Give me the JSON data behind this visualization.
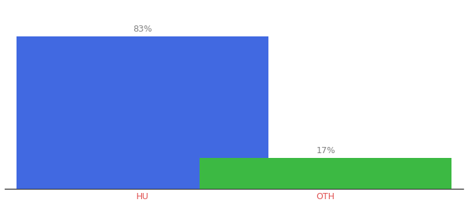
{
  "categories": [
    "HU",
    "OTH"
  ],
  "values": [
    83,
    17
  ],
  "bar_colors": [
    "#4169E1",
    "#3CB943"
  ],
  "label_texts": [
    "83%",
    "17%"
  ],
  "title": "",
  "label_fontsize": 9,
  "tick_fontsize": 9,
  "tick_color": "#E05050",
  "label_color": "#808080",
  "background_color": "#ffffff",
  "ylim": [
    0,
    100
  ],
  "bar_width": 0.55,
  "bar_positions": [
    0.3,
    0.7
  ],
  "xlim": [
    0.0,
    1.0
  ]
}
